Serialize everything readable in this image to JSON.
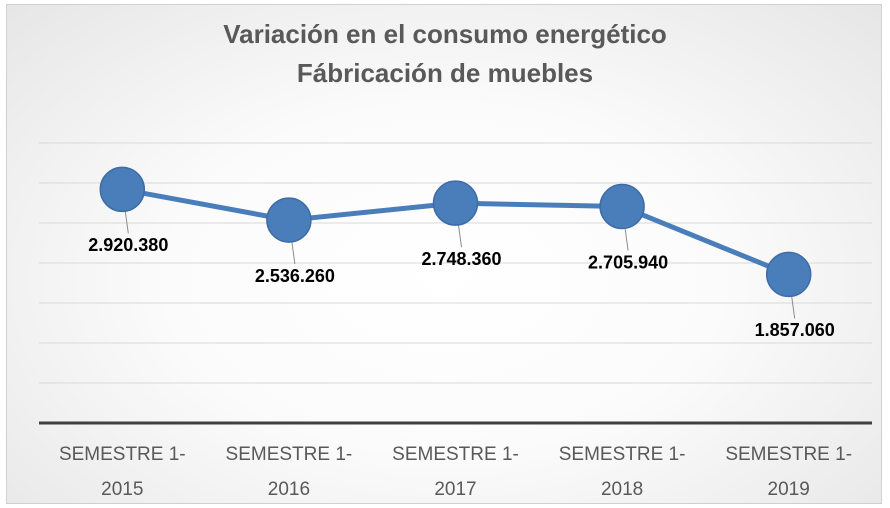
{
  "chart_data": {
    "type": "line",
    "title": "Variación en el consumo energético",
    "subtitle": "Fábricación de muebles",
    "categories": [
      "SEMESTRE 1-2015",
      "SEMESTRE 1-2016",
      "SEMESTRE 1-2017",
      "SEMESTRE 1-2018",
      "SEMESTRE 1-2019"
    ],
    "series": [
      {
        "color": "#4a7ebb",
        "values": [
          2920380,
          2536260,
          2748360,
          2705940,
          1857060
        ],
        "value_labels": [
          "2.920.380",
          "2.536.260",
          "2.748.360",
          "2.705.940",
          "1.857.060"
        ]
      }
    ],
    "ylim": [
      0,
      3500000
    ],
    "yticks": [
      0,
      500000,
      1000000,
      1500000,
      2000000,
      2500000,
      3000000,
      3500000
    ],
    "grid": true
  }
}
